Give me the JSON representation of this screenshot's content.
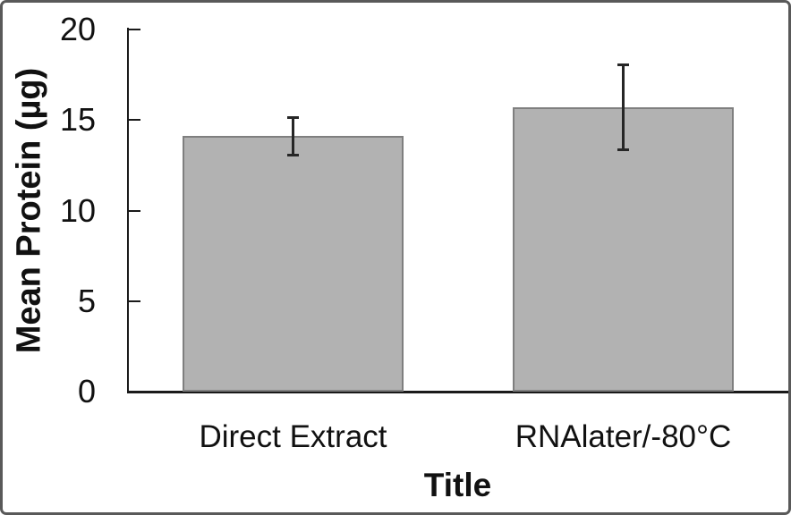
{
  "chart_data": {
    "type": "bar",
    "categories": [
      "Direct Extract",
      "RNAlater/-80°C"
    ],
    "values": [
      14.1,
      15.7
    ],
    "errors": [
      1.1,
      2.4
    ],
    "xlabel": "Title",
    "ylabel": "Mean Protein (µg)",
    "ylim": [
      0,
      20
    ],
    "yticks": [
      0,
      5,
      10,
      15,
      20
    ],
    "grid": false,
    "legend_position": "none",
    "colors": {
      "bar_fill": "#b2b2b2",
      "bar_border": "#7f7f7f",
      "error_bar": "#262626",
      "axis": "#1a1a1a",
      "text": "#111111",
      "frame_border": "#595959",
      "background": "#ffffff"
    }
  }
}
